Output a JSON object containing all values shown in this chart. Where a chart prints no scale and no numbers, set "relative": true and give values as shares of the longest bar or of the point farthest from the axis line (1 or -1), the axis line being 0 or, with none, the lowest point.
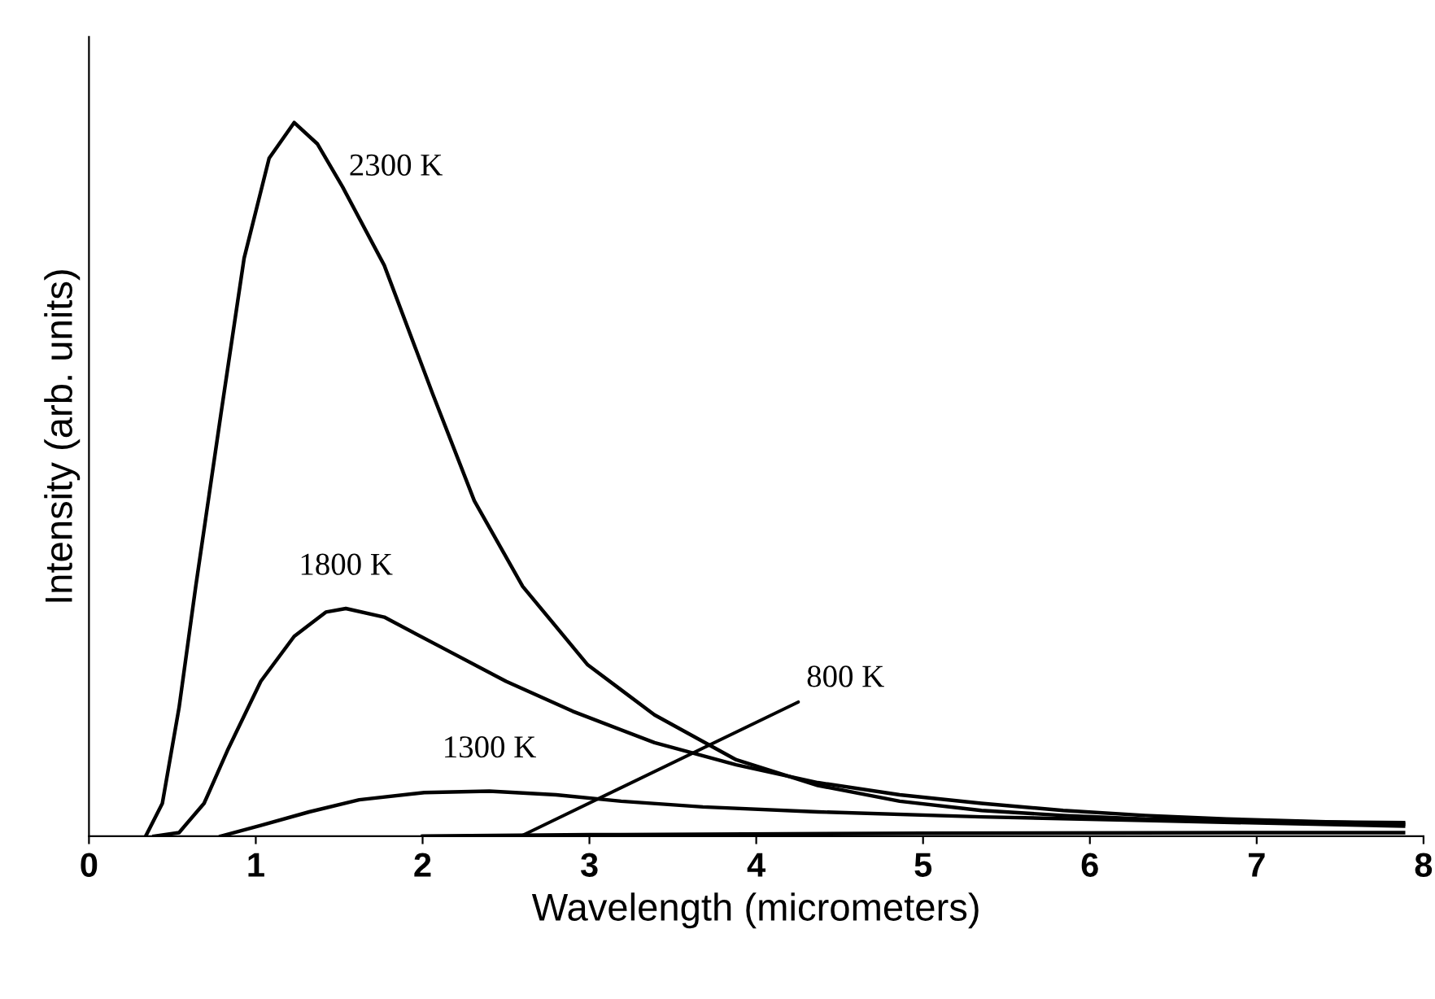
{
  "chart_data": {
    "type": "line",
    "relative": true,
    "xlabel": "Wavelength (micrometers)",
    "ylabel": "Intensity (arb. units)",
    "xlim": [
      0,
      8
    ],
    "xticks": [
      0,
      1,
      2,
      3,
      4,
      5,
      6,
      7,
      8
    ],
    "grid": false,
    "legend": false,
    "marker": "none",
    "line_style": "solid",
    "series": [
      {
        "name": "2300 K",
        "color": "#000000",
        "x": [
          0.34,
          0.44,
          0.54,
          0.64,
          0.79,
          0.93,
          1.08,
          1.23,
          1.37,
          1.52,
          1.77,
          2.06,
          2.31,
          2.6,
          2.99,
          3.39,
          3.88,
          4.37,
          4.86,
          5.35,
          5.84,
          6.33,
          6.82,
          7.31,
          7.88
        ],
        "values": [
          0,
          0.046,
          0.18,
          0.35,
          0.59,
          0.81,
          0.95,
          1,
          0.97,
          0.91,
          0.8,
          0.62,
          0.47,
          0.35,
          0.24,
          0.17,
          0.107,
          0.071,
          0.049,
          0.036,
          0.029,
          0.024,
          0.022,
          0.02,
          0.019
        ]
      },
      {
        "name": "1800 K",
        "color": "#000000",
        "x": [
          0.39,
          0.54,
          0.69,
          0.83,
          1.03,
          1.23,
          1.42,
          1.54,
          1.77,
          2.11,
          2.5,
          2.9,
          3.39,
          3.88,
          4.37,
          4.86,
          5.35,
          5.84,
          6.33,
          6.82,
          7.88
        ],
        "values": [
          0,
          0.005,
          0.046,
          0.12,
          0.217,
          0.28,
          0.314,
          0.319,
          0.307,
          0.265,
          0.217,
          0.175,
          0.131,
          0.1,
          0.075,
          0.058,
          0.046,
          0.036,
          0.029,
          0.024,
          0.017
        ]
      },
      {
        "name": "1300 K",
        "color": "#000000",
        "x": [
          0.79,
          1.03,
          1.32,
          1.62,
          2.01,
          2.4,
          2.8,
          3.19,
          3.68,
          4.37,
          5.35,
          6.33,
          7.88
        ],
        "values": [
          0,
          0.015,
          0.034,
          0.051,
          0.061,
          0.063,
          0.058,
          0.049,
          0.041,
          0.034,
          0.027,
          0.022,
          0.014
        ]
      },
      {
        "name": "800 K",
        "color": "#000000",
        "x": [
          2.0,
          3.0,
          5.0,
          7.0,
          7.88
        ],
        "values": [
          0,
          0.002,
          0.004,
          0.005,
          0.005
        ]
      }
    ]
  }
}
